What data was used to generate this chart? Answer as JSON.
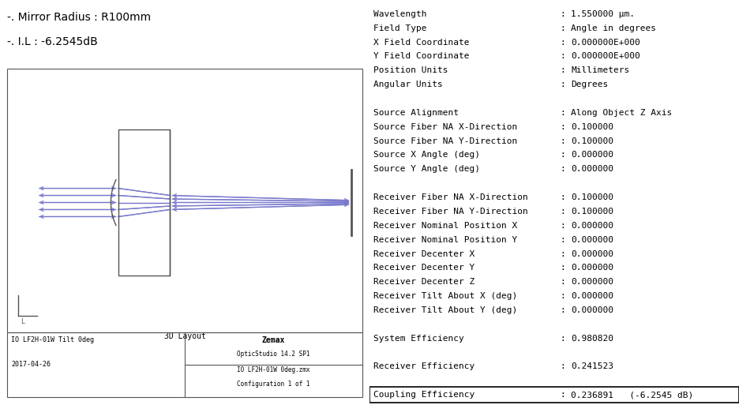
{
  "title_line1": "-. Mirror Radius : R100mm",
  "title_line2": "-. I.L : -6.2545dB",
  "left_panel": {
    "layout_title": "3D Layout",
    "bottom_left_text1": "IO LF2H-01W Tilt 0deg",
    "bottom_left_text2": "2017-04-26",
    "bottom_right_text1": "Zemax",
    "bottom_right_text2": "OpticStudio 14.2 SP1",
    "bottom_right_text3": "IO LF2H-01W 0deg.zmx",
    "bottom_right_text4": "Configuration 1 of 1"
  },
  "right_panel": {
    "rows": [
      {
        "label": "Wavelength",
        "colon": ":",
        "value": "1.550000 μm."
      },
      {
        "label": "Field Type",
        "colon": ":",
        "value": "Angle in degrees"
      },
      {
        "label": "X Field Coordinate",
        "colon": ":",
        "value": "0.000000E+000"
      },
      {
        "label": "Y Field Coordinate",
        "colon": ":",
        "value": "0.000000E+000"
      },
      {
        "label": "Position Units",
        "colon": ":",
        "value": "Millimeters"
      },
      {
        "label": "Angular Units",
        "colon": ":",
        "value": "Degrees"
      },
      {
        "label": "",
        "colon": "",
        "value": ""
      },
      {
        "label": "Source Alignment",
        "colon": ":",
        "value": "Along Object Z Axis"
      },
      {
        "label": "Source Fiber NA X-Direction",
        "colon": ":",
        "value": "0.100000"
      },
      {
        "label": "Source Fiber NA Y-Direction",
        "colon": ":",
        "value": "0.100000"
      },
      {
        "label": "Source X Angle (deg)",
        "colon": ":",
        "value": "0.000000"
      },
      {
        "label": "Source Y Angle (deg)",
        "colon": ":",
        "value": "0.000000"
      },
      {
        "label": "",
        "colon": "",
        "value": ""
      },
      {
        "label": "Receiver Fiber NA X-Direction",
        "colon": ":",
        "value": "0.100000"
      },
      {
        "label": "Receiver Fiber NA Y-Direction",
        "colon": ":",
        "value": "0.100000"
      },
      {
        "label": "Receiver Nominal Position X",
        "colon": ":",
        "value": "0.000000"
      },
      {
        "label": "Receiver Nominal Position Y",
        "colon": ":",
        "value": "0.000000"
      },
      {
        "label": "Receiver Decenter X",
        "colon": ":",
        "value": "0.000000"
      },
      {
        "label": "Receiver Decenter Y",
        "colon": ":",
        "value": "0.000000"
      },
      {
        "label": "Receiver Decenter Z",
        "colon": ":",
        "value": "0.000000"
      },
      {
        "label": "Receiver Tilt About X (deg)",
        "colon": ":",
        "value": "0.000000"
      },
      {
        "label": "Receiver Tilt About Y (deg)",
        "colon": ":",
        "value": "0.000000"
      },
      {
        "label": "",
        "colon": "",
        "value": ""
      },
      {
        "label": "System Efficiency",
        "colon": ":",
        "value": "0.980820"
      },
      {
        "label": "",
        "colon": "",
        "value": ""
      },
      {
        "label": "Receiver Efficiency",
        "colon": ":",
        "value": "0.241523"
      },
      {
        "label": "",
        "colon": "",
        "value": ""
      },
      {
        "label": "Coupling Efficiency",
        "colon": ":",
        "value": "0.236891   (-6.2545 dB)",
        "highlight": true
      }
    ]
  },
  "bg_color": "#ffffff",
  "text_color": "#000000",
  "ray_color": "#7878cc",
  "box_color": "#555555",
  "font_size_title": 10,
  "font_size_table": 8,
  "mono_font": "monospace"
}
